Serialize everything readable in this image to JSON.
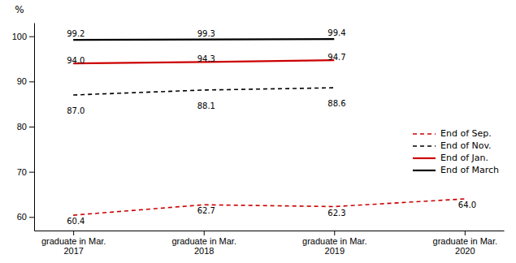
{
  "chart_data": {
    "type": "line",
    "categories": [
      "graduate in Mar.\n2017",
      "graduate in Mar.\n2018",
      "graduate in Mar.\n2019",
      "graduate in Mar.\n2020"
    ],
    "ylabel": "%",
    "ylim": [
      57,
      103
    ],
    "yticks": [
      60,
      70,
      80,
      90,
      100
    ],
    "legend": "lower right",
    "data_labels": true,
    "series": [
      {
        "name": "End of Sep.",
        "color": "#cc0000",
        "line_style": "dashed",
        "values": [
          60.4,
          62.7,
          62.3,
          64.0
        ],
        "value_labels": [
          "60.4",
          "62.7",
          "62.3",
          "64.0"
        ]
      },
      {
        "name": "End of Nov.",
        "color": "#000000",
        "line_style": "dashed",
        "values": [
          87.0,
          88.1,
          88.6,
          null
        ],
        "value_labels": [
          "87.0",
          "88.1",
          "88.6",
          null
        ]
      },
      {
        "name": "End of Jan.",
        "color": "#cc0000",
        "line_style": "solid",
        "values": [
          94.0,
          94.3,
          94.7,
          null
        ],
        "value_labels": [
          "94.0",
          "94.3",
          "94.7",
          null
        ]
      },
      {
        "name": "End of March",
        "color": "#000000",
        "line_style": "solid",
        "values": [
          99.2,
          99.3,
          99.4,
          null
        ],
        "value_labels": [
          "99.2",
          "99.3",
          "99.4",
          null
        ]
      }
    ]
  }
}
